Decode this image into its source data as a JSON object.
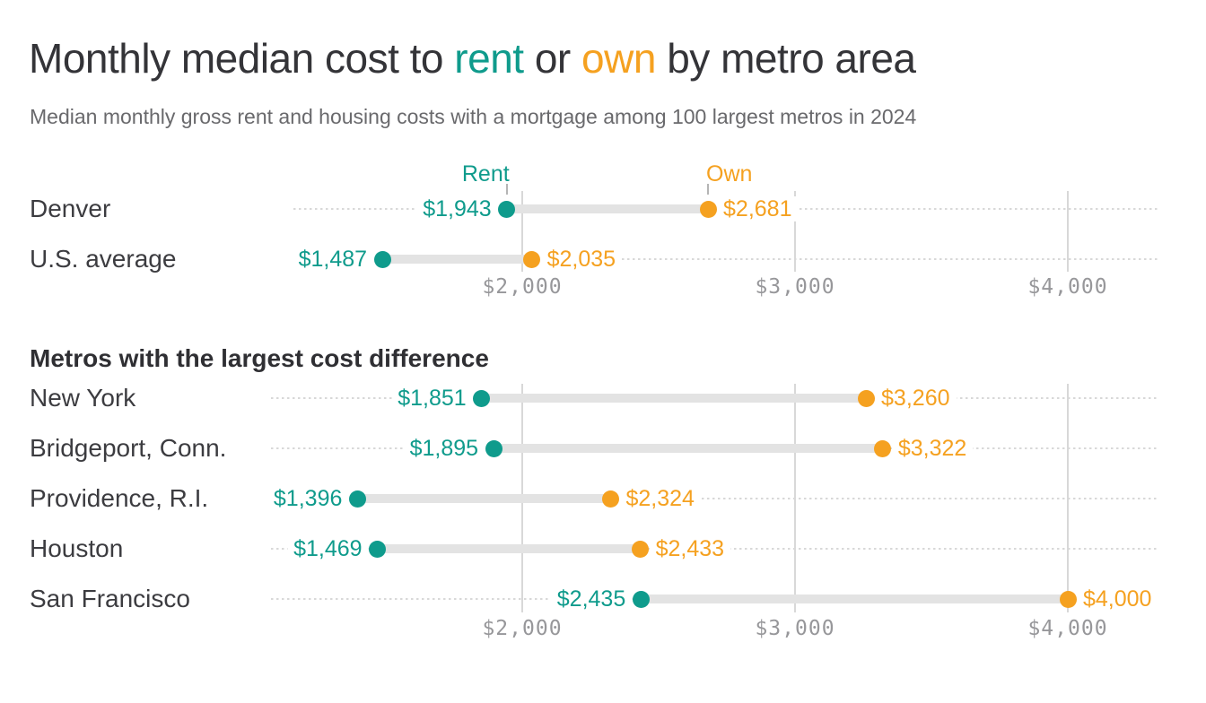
{
  "header": {
    "title_parts": [
      {
        "text": "Monthly median cost to ",
        "role": "dark"
      },
      {
        "text": "rent",
        "role": "rent"
      },
      {
        "text": " or ",
        "role": "dark"
      },
      {
        "text": "own",
        "role": "own"
      },
      {
        "text": " by metro area",
        "role": "dark"
      }
    ],
    "subtitle": "Median monthly gross rent and housing costs with a mortgage among 100 largest metros in 2024"
  },
  "legend": {
    "rent": "Rent",
    "own": "Own"
  },
  "colors": {
    "rent": "#0F9B8C",
    "own": "#F5A120",
    "title_text": "#343438",
    "label_text": "#3C3C40",
    "subtitle_text": "#69696C",
    "axis_text": "#97979A",
    "gridline": "#D8D8D8",
    "bar": "#E3E3E3",
    "dotted": "#D8D8D8",
    "tick": "#B5B5B5",
    "bg": "#FFFFFF"
  },
  "chart_data": [
    {
      "type": "dumbbell",
      "section_title": "",
      "categories": [
        "Denver",
        "U.S. average"
      ],
      "series": [
        {
          "name": "Rent",
          "values": [
            1943,
            1487
          ]
        },
        {
          "name": "Own",
          "values": [
            2681,
            2035
          ]
        }
      ],
      "value_labels": {
        "rent": [
          "$1,943",
          "$1,487"
        ],
        "own": [
          "$2,681",
          "$2,035"
        ]
      },
      "x_ticks": [
        2000,
        3000,
        4000
      ],
      "x_tick_labels": [
        "$2,000",
        "$3,000",
        "$4,000"
      ],
      "xlim": [
        1160,
        4330
      ],
      "grid": "vertical-at-ticks",
      "legend_position": "above-first-row"
    },
    {
      "type": "dumbbell",
      "section_title": "Metros with the largest cost difference",
      "categories": [
        "New York",
        "Bridgeport, Conn.",
        "Providence, R.I.",
        "Houston",
        "San Francisco"
      ],
      "series": [
        {
          "name": "Rent",
          "values": [
            1851,
            1895,
            1396,
            1469,
            2435
          ]
        },
        {
          "name": "Own",
          "values": [
            3260,
            3322,
            2324,
            2433,
            4000
          ]
        }
      ],
      "value_labels": {
        "rent": [
          "$1,851",
          "$1,895",
          "$1,396",
          "$1,469",
          "$2,435"
        ],
        "own": [
          "$3,260",
          "$3,322",
          "$2,324",
          "$2,433",
          "$4,000"
        ]
      },
      "x_ticks": [
        2000,
        3000,
        4000
      ],
      "x_tick_labels": [
        "$2,000",
        "$3,000",
        "$4,000"
      ],
      "xlim": [
        1080,
        4330
      ],
      "grid": "vertical-at-ticks",
      "legend_position": "none"
    }
  ]
}
